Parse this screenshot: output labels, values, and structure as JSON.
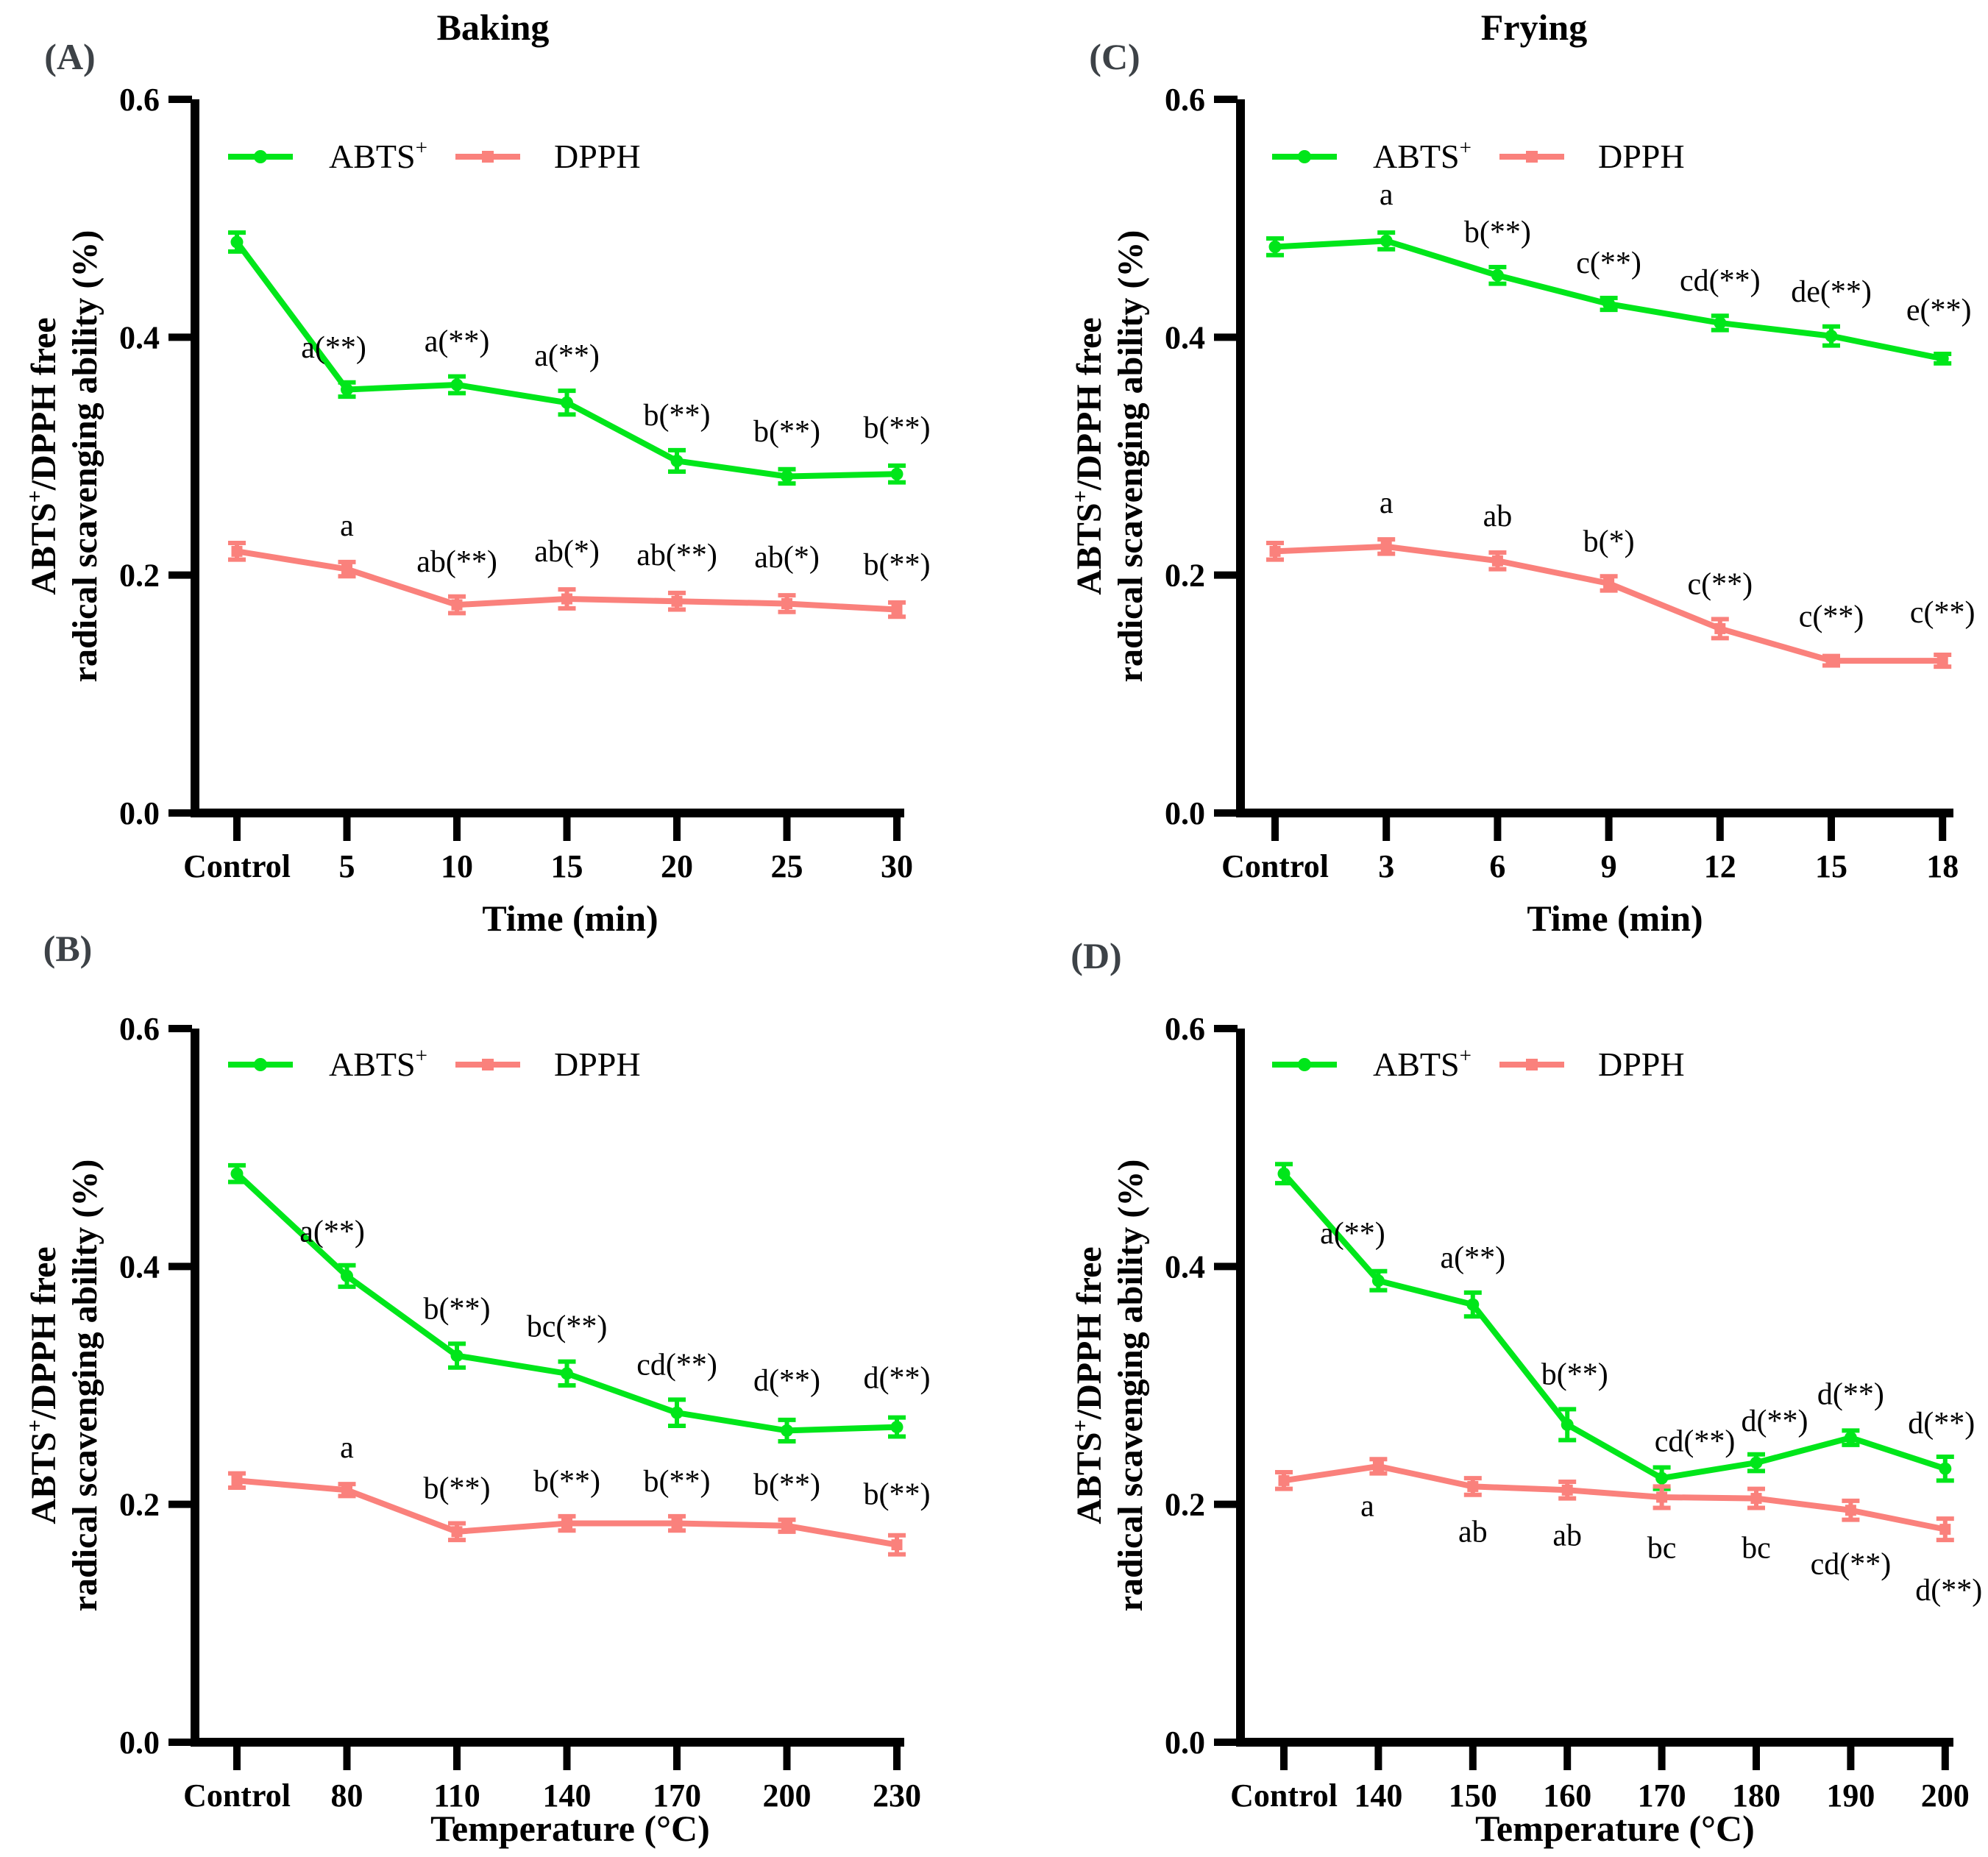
{
  "figure": {
    "column_titles": [
      {
        "text": "Baking"
      },
      {
        "text": "Frying"
      }
    ],
    "legend": {
      "abts_label": "ABTS",
      "abts_sup": "+",
      "dpph_label": "DPPH"
    },
    "colors": {
      "abts": "#00e61a",
      "dpph": "#fa817c",
      "axis": "#000000",
      "annotation": "#000000",
      "panel_letter": "#3d4247"
    },
    "y_axis": {
      "min": 0.0,
      "max": 0.6,
      "ticks": [
        "0.0",
        "0.2",
        "0.4",
        "0.6"
      ],
      "label_line1_pre": "ABTS",
      "label_line1_sup": "+",
      "label_line1_post": "/DPPH free",
      "label_line2": "radical scavenging ability (%)"
    }
  },
  "chart_data": [
    {
      "id": "A",
      "panel_label": "(A)",
      "type": "line",
      "column_title": "Baking",
      "xlabel": "Time (min)",
      "ylabel": "ABTS+/DPPH free radical scavenging ability (%)",
      "ylim": [
        0.0,
        0.6
      ],
      "categories": [
        "Control",
        "5",
        "10",
        "15",
        "20",
        "25",
        "30"
      ],
      "series": [
        {
          "name": "ABTS+",
          "color_key": "abts",
          "marker": "circle",
          "annotation_side": "above",
          "values": [
            0.48,
            0.356,
            0.36,
            0.345,
            0.296,
            0.283,
            0.285
          ],
          "errors": [
            0.008,
            0.006,
            0.007,
            0.01,
            0.009,
            0.006,
            0.007
          ],
          "annotations": [
            null,
            {
              "text": "a(**)",
              "dx": -18,
              "dy": -10
            },
            {
              "text": "a(**)",
              "dx": 0,
              "dy": -10
            },
            {
              "text": "a(**)",
              "dx": 0,
              "dy": -10
            },
            {
              "text": "b(**)",
              "dx": 0,
              "dy": -10
            },
            {
              "text": "b(**)",
              "dx": 0,
              "dy": -14
            },
            {
              "text": "b(**)",
              "dx": 0,
              "dy": -14
            }
          ]
        },
        {
          "name": "DPPH",
          "color_key": "dpph",
          "marker": "square",
          "annotation_side": "above",
          "values": [
            0.22,
            0.205,
            0.175,
            0.18,
            0.178,
            0.176,
            0.171
          ],
          "errors": [
            0.007,
            0.006,
            0.007,
            0.008,
            0.007,
            0.007,
            0.006
          ],
          "annotations": [
            null,
            {
              "text": "a",
              "dx": 0,
              "dy": -12
            },
            {
              "text": "ab(**)",
              "dx": 0,
              "dy": -10
            },
            {
              "text": "ab(*)",
              "dx": 0,
              "dy": -14
            },
            {
              "text": "ab(**)",
              "dx": 0,
              "dy": -14
            },
            {
              "text": "ab(*)",
              "dx": 0,
              "dy": -14
            },
            {
              "text": "b(**)",
              "dx": 0,
              "dy": -14
            }
          ]
        }
      ]
    },
    {
      "id": "C",
      "panel_label": "(C)",
      "type": "line",
      "column_title": "Frying",
      "xlabel": "Time (min)",
      "ylabel": "ABTS+/DPPH free radical scavenging ability (%)",
      "ylim": [
        0.0,
        0.6
      ],
      "categories": [
        "Control",
        "3",
        "6",
        "9",
        "12",
        "15",
        "18"
      ],
      "series": [
        {
          "name": "ABTS+",
          "color_key": "abts",
          "marker": "circle",
          "annotation_side": "above",
          "values": [
            0.476,
            0.481,
            0.452,
            0.428,
            0.412,
            0.401,
            0.382
          ],
          "errors": [
            0.007,
            0.007,
            0.007,
            0.005,
            0.006,
            0.008,
            0.004
          ],
          "annotations": [
            null,
            {
              "text": "a",
              "dx": 0,
              "dy": -14
            },
            {
              "text": "b(**)",
              "dx": 0,
              "dy": -10
            },
            {
              "text": "c(**)",
              "dx": 0,
              "dy": -10
            },
            {
              "text": "cd(**)",
              "dx": 0,
              "dy": -10
            },
            {
              "text": "de(**)",
              "dx": 0,
              "dy": -10
            },
            {
              "text": "e(**)",
              "dx": -5,
              "dy": -22
            }
          ]
        },
        {
          "name": "DPPH",
          "color_key": "dpph",
          "marker": "square",
          "annotation_side": "above",
          "values": [
            0.22,
            0.224,
            0.212,
            0.193,
            0.155,
            0.128,
            0.128
          ],
          "errors": [
            0.007,
            0.006,
            0.007,
            0.006,
            0.008,
            0.004,
            0.005
          ],
          "annotations": [
            null,
            {
              "text": "a",
              "dx": 0,
              "dy": -12
            },
            {
              "text": "ab",
              "dx": 0,
              "dy": -12
            },
            {
              "text": "b(*)",
              "dx": 0,
              "dy": -10
            },
            {
              "text": "c(**)",
              "dx": 0,
              "dy": -10
            },
            {
              "text": "c(**)",
              "dx": 0,
              "dy": -16
            },
            {
              "text": "c(**)",
              "dx": 0,
              "dy": -20
            }
          ]
        }
      ]
    },
    {
      "id": "B",
      "panel_label": "(B)",
      "type": "line",
      "column_title": "Baking",
      "xlabel": "Temperature (°C)",
      "ylabel": "ABTS+/DPPH free radical scavenging ability (%)",
      "ylim": [
        0.0,
        0.6
      ],
      "categories": [
        "Control",
        "80",
        "110",
        "140",
        "170",
        "200",
        "230"
      ],
      "series": [
        {
          "name": "ABTS+",
          "color_key": "abts",
          "marker": "circle",
          "annotation_side": "above",
          "values": [
            0.478,
            0.392,
            0.325,
            0.31,
            0.277,
            0.262,
            0.265
          ],
          "errors": [
            0.007,
            0.009,
            0.01,
            0.01,
            0.011,
            0.009,
            0.008
          ],
          "annotations": [
            null,
            {
              "text": "a(**)",
              "dx": -20,
              "dy": -8
            },
            {
              "text": "b(**)",
              "dx": 0,
              "dy": -10
            },
            {
              "text": "bc(**)",
              "dx": 0,
              "dy": -10
            },
            {
              "text": "cd(**)",
              "dx": 0,
              "dy": -10
            },
            {
              "text": "d(**)",
              "dx": 0,
              "dy": -16
            },
            {
              "text": "d(**)",
              "dx": 0,
              "dy": -16
            }
          ]
        },
        {
          "name": "DPPH",
          "color_key": "dpph",
          "marker": "square",
          "annotation_side": "above",
          "values": [
            0.22,
            0.212,
            0.177,
            0.184,
            0.184,
            0.182,
            0.166
          ],
          "errors": [
            0.006,
            0.005,
            0.007,
            0.006,
            0.006,
            0.005,
            0.008
          ],
          "annotations": [
            null,
            {
              "text": "a",
              "dx": 0,
              "dy": -12
            },
            {
              "text": "b(**)",
              "dx": 0,
              "dy": -10
            },
            {
              "text": "b(**)",
              "dx": 0,
              "dy": -10
            },
            {
              "text": "b(**)",
              "dx": 0,
              "dy": -10
            },
            {
              "text": "b(**)",
              "dx": 0,
              "dy": -10
            },
            {
              "text": "b(**)",
              "dx": 0,
              "dy": -18
            }
          ]
        }
      ]
    },
    {
      "id": "D",
      "panel_label": "(D)",
      "type": "line",
      "column_title": "Frying",
      "xlabel": "Temperature (°C)",
      "ylabel": "ABTS+/DPPH free radical scavenging ability (%)",
      "ylim": [
        0.0,
        0.6
      ],
      "categories": [
        "Control",
        "140",
        "150",
        "160",
        "170",
        "180",
        "190",
        "200"
      ],
      "series": [
        {
          "name": "ABTS+",
          "color_key": "abts",
          "marker": "circle",
          "annotation_side": "above",
          "values": [
            0.478,
            0.388,
            0.368,
            0.267,
            0.222,
            0.235,
            0.256,
            0.23
          ],
          "errors": [
            0.008,
            0.008,
            0.01,
            0.013,
            0.009,
            0.007,
            0.006,
            0.01
          ],
          "annotations": [
            null,
            {
              "text": "a(**)",
              "dx": -35,
              "dy": -14
            },
            {
              "text": "a(**)",
              "dx": 0,
              "dy": -10
            },
            {
              "text": "b(**)",
              "dx": 10,
              "dy": -10
            },
            {
              "text": "cd(**)",
              "dx": 45,
              "dy": 2
            },
            {
              "text": "d(**)",
              "dx": 25,
              "dy": -8
            },
            {
              "text": "d(**)",
              "dx": 0,
              "dy": -12
            },
            {
              "text": "d(**)",
              "dx": -5,
              "dy": -8
            }
          ]
        },
        {
          "name": "DPPH",
          "color_key": "dpph",
          "marker": "square",
          "annotation_side": "below",
          "values": [
            0.22,
            0.232,
            0.215,
            0.212,
            0.206,
            0.205,
            0.195,
            0.179
          ],
          "errors": [
            0.007,
            0.006,
            0.007,
            0.007,
            0.009,
            0.008,
            0.008,
            0.009
          ],
          "annotations": [
            null,
            {
              "text": "a",
              "dx": -15,
              "dy": 0
            },
            {
              "text": "ab",
              "dx": 0,
              "dy": 6
            },
            {
              "text": "ab",
              "dx": 0,
              "dy": 6
            },
            {
              "text": "bc",
              "dx": 0,
              "dy": 10
            },
            {
              "text": "bc",
              "dx": 0,
              "dy": 10
            },
            {
              "text": "cd(**)",
              "dx": 0,
              "dy": 16
            },
            {
              "text": "d(**)",
              "dx": 5,
              "dy": 24
            }
          ]
        }
      ]
    }
  ]
}
